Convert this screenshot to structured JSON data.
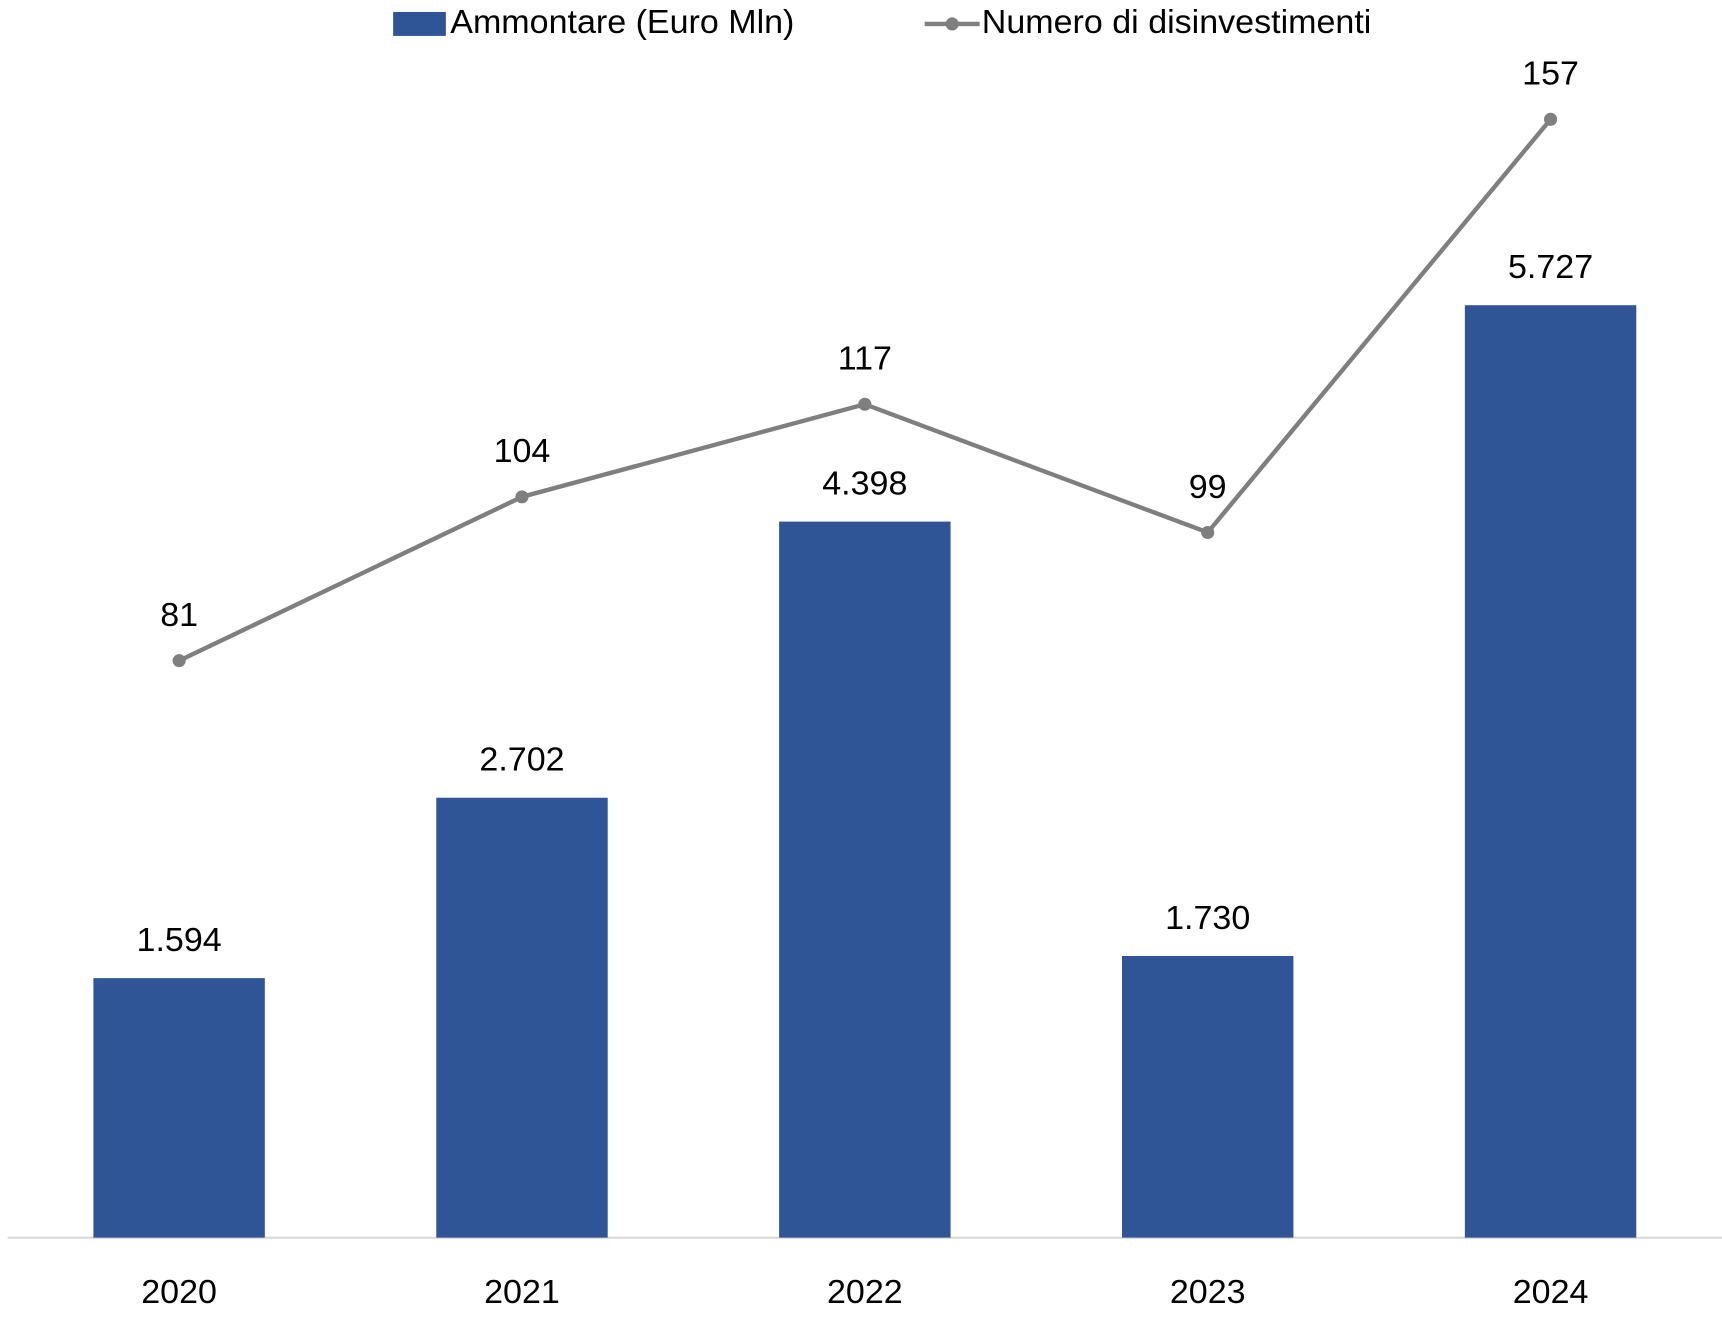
{
  "chart_data": {
    "type": "bar-line",
    "categories": [
      "2020",
      "2021",
      "2022",
      "2023",
      "2024"
    ],
    "series": [
      {
        "name": "Ammontare (Euro Mln)",
        "type": "bar",
        "color": "#2f5597",
        "values": [
          1594,
          2702,
          4398,
          1730,
          5727
        ],
        "value_labels": [
          "1.594",
          "2.702",
          "4.398",
          "1.730",
          "5.727"
        ]
      },
      {
        "name": "Numero di disinvestimenti",
        "type": "line",
        "axis": "y2",
        "color": "#7f7f7f",
        "values": [
          81,
          104,
          117,
          99,
          157
        ]
      }
    ],
    "ylim": [
      0,
      7000
    ],
    "y2lim": [
      0,
      160
    ],
    "legend": "top",
    "grid": false
  }
}
